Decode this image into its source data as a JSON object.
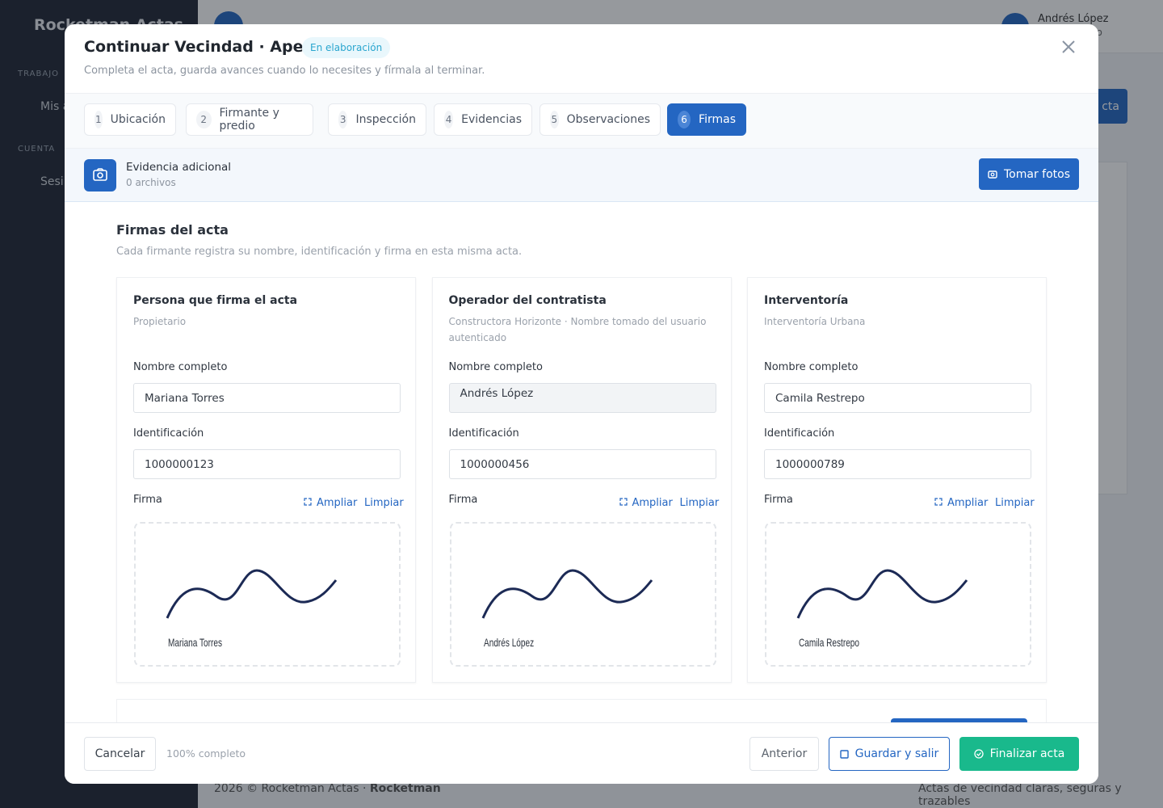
{
  "background": {
    "brand": "Rocketman Actas",
    "nav_sections": [
      "TRABAJO",
      "CUENTA"
    ],
    "nav_items": [
      "Mis a",
      "Sesi"
    ],
    "user": {
      "name": "Andrés López",
      "role": "ativo"
    },
    "action": "cta",
    "footer_left": "2026 © Rocketman Actas · ",
    "footer_brand": "Rocketman",
    "footer_right": "Actas de vecindad claras, seguras y trazables"
  },
  "modal": {
    "title": "Continuar Vecindad · Apertura",
    "badge": "En elaboración",
    "subtitle": "Completa el acta, guarda avances cuando lo necesites y fírmala al terminar.",
    "steps": [
      {
        "number": "1",
        "label": "Ubicación"
      },
      {
        "number": "2",
        "label": "Firmante y predio"
      },
      {
        "number": "3",
        "label": "Inspección"
      },
      {
        "number": "4",
        "label": "Evidencias"
      },
      {
        "number": "5",
        "label": "Observaciones"
      },
      {
        "number": "6",
        "label": "Firmas",
        "active": true
      }
    ],
    "evidence": {
      "title": "Evidencia adicional",
      "count": "0 archivos",
      "button": "Tomar fotos"
    },
    "section": {
      "title": "Firmas del acta",
      "subtitle": "Cada firmante registra su nombre, identificación y firma en esta misma acta."
    },
    "field_labels": {
      "name": "Nombre completo",
      "id": "Identificación",
      "signature": "Firma",
      "expand": "Ampliar",
      "clear": "Limpiar"
    },
    "signers": [
      {
        "role": "Persona que firma el acta",
        "detail": "Propietario",
        "name": "Mariana Torres",
        "id": "1000000123",
        "locked": false
      },
      {
        "role": "Operador del contratista",
        "detail": "Constructora Horizonte · Nombre tomado del usuario autenticado",
        "name": "Andrés López",
        "id": "1000000456",
        "locked": true
      },
      {
        "role": "Interventoría",
        "detail": "Interventoría Urbana",
        "name": "Camila Restrepo",
        "id": "1000000789",
        "locked": false
      }
    ],
    "footer": {
      "cancel": "Cancelar",
      "progress": "100% completo",
      "previous": "Anterior",
      "save": "Guardar y salir",
      "finish": "Finalizar acta"
    }
  }
}
